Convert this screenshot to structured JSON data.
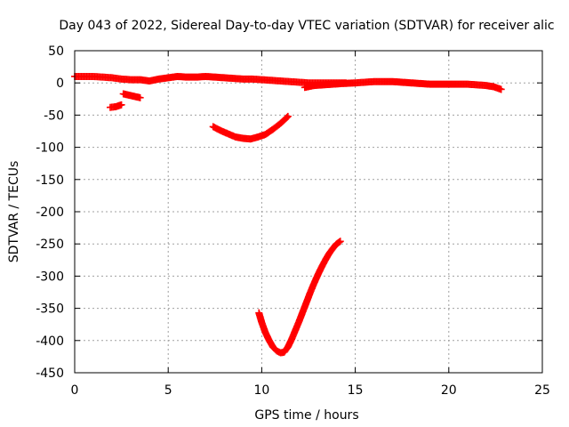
{
  "chart_data": {
    "type": "scatter",
    "title": "Day 043 of 2022, Sidereal Day-to-day VTEC variation (SDTVAR) for receiver alic",
    "xlabel": "GPS time / hours",
    "ylabel": "SDTVAR / TECUs",
    "xlim": [
      0,
      25
    ],
    "ylim": [
      -450,
      50
    ],
    "x_ticks": [
      0,
      5,
      10,
      15,
      20,
      25
    ],
    "x_tick_labels": [
      "0",
      "5",
      "10",
      "15",
      "20",
      "25"
    ],
    "y_ticks": [
      50,
      0,
      -50,
      -100,
      -150,
      -200,
      -250,
      -300,
      -350,
      -400,
      -450
    ],
    "y_tick_labels": [
      "50",
      "0",
      "-50",
      "-100",
      "-150",
      "-200",
      "-250",
      "-300",
      "-350",
      "-400",
      "-450"
    ],
    "grid": true,
    "legend": "none",
    "marker": "plus",
    "color": "#ff0000",
    "series": [
      {
        "points": [
          [
            0,
            10
          ],
          [
            0.5,
            10
          ],
          [
            1,
            10
          ],
          [
            1.5,
            9
          ],
          [
            2,
            8
          ],
          [
            2.5,
            6
          ],
          [
            3,
            5
          ],
          [
            3.5,
            5
          ],
          [
            4,
            3
          ],
          [
            4.5,
            6
          ],
          [
            5,
            8
          ],
          [
            5.5,
            10
          ],
          [
            6,
            9
          ],
          [
            6.5,
            9
          ],
          [
            7,
            10
          ],
          [
            7.5,
            9
          ],
          [
            8,
            8
          ],
          [
            8.5,
            7
          ],
          [
            9,
            6
          ],
          [
            9.5,
            6
          ],
          [
            10,
            5
          ],
          [
            10.5,
            4
          ],
          [
            11,
            3
          ],
          [
            11.5,
            2
          ],
          [
            12,
            1
          ],
          [
            12.5,
            0
          ],
          [
            13,
            0
          ],
          [
            13.5,
            0
          ],
          [
            14,
            0
          ],
          [
            14.5,
            0
          ]
        ]
      },
      {
        "points": [
          [
            12.3,
            -7
          ],
          [
            12.8,
            -4
          ],
          [
            13.3,
            -3
          ],
          [
            13.8,
            -2
          ],
          [
            14.3,
            -1
          ],
          [
            15,
            0
          ],
          [
            15.5,
            1
          ],
          [
            16,
            2
          ],
          [
            16.5,
            2
          ],
          [
            17,
            2
          ],
          [
            17.5,
            1
          ],
          [
            18,
            0
          ],
          [
            18.5,
            -1
          ],
          [
            19,
            -2
          ],
          [
            19.5,
            -2
          ],
          [
            20,
            -2
          ],
          [
            20.5,
            -2
          ],
          [
            21,
            -2
          ],
          [
            21.5,
            -3
          ],
          [
            22,
            -4
          ],
          [
            22.4,
            -6
          ],
          [
            22.8,
            -10
          ]
        ]
      },
      {
        "points": [
          [
            1.9,
            -38
          ],
          [
            2.2,
            -37
          ],
          [
            2.5,
            -34
          ]
        ]
      },
      {
        "points": [
          [
            2.6,
            -17
          ],
          [
            2.9,
            -19
          ],
          [
            3.2,
            -21
          ],
          [
            3.5,
            -23
          ]
        ]
      },
      {
        "points": [
          [
            7.4,
            -68
          ],
          [
            7.8,
            -74
          ],
          [
            8.2,
            -79
          ],
          [
            8.6,
            -84
          ],
          [
            9,
            -86
          ],
          [
            9.4,
            -87
          ],
          [
            9.8,
            -84
          ],
          [
            10.2,
            -80
          ],
          [
            10.6,
            -72
          ],
          [
            11,
            -63
          ],
          [
            11.4,
            -52
          ]
        ]
      },
      {
        "points": [
          [
            9.85,
            -357
          ],
          [
            10.0,
            -372
          ],
          [
            10.2,
            -388
          ],
          [
            10.4,
            -400
          ],
          [
            10.6,
            -410
          ],
          [
            10.8,
            -416
          ],
          [
            11.0,
            -419
          ],
          [
            11.2,
            -418
          ],
          [
            11.4,
            -410
          ],
          [
            11.6,
            -398
          ],
          [
            11.8,
            -384
          ],
          [
            12.0,
            -370
          ],
          [
            12.2,
            -355
          ],
          [
            12.4,
            -340
          ],
          [
            12.6,
            -325
          ],
          [
            12.8,
            -311
          ],
          [
            13.0,
            -298
          ],
          [
            13.2,
            -286
          ],
          [
            13.4,
            -275
          ],
          [
            13.6,
            -265
          ],
          [
            13.8,
            -257
          ],
          [
            14.0,
            -250
          ],
          [
            14.2,
            -246
          ]
        ]
      }
    ]
  }
}
